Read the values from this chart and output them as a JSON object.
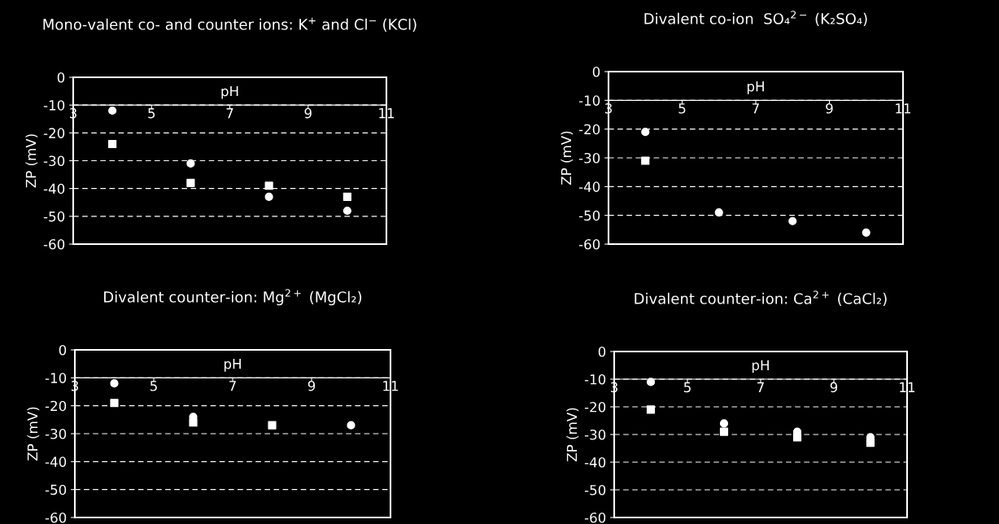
{
  "chart_data": [
    {
      "type": "scatter",
      "title": "Mono-valent co- and counter ions: K$^{+}$ and Cl$^{−}$ (KCl)",
      "xlabel": "pH",
      "ylabel": "ZP (mV)",
      "xlim": [
        3,
        11
      ],
      "xticks": [
        3,
        5,
        7,
        9,
        11
      ],
      "ylim": [
        -60,
        0
      ],
      "yticks": [
        -60,
        -50,
        -40,
        -30,
        -20,
        -10,
        0
      ],
      "grid": "y",
      "x": [
        4,
        6,
        8,
        10
      ],
      "series": [
        {
          "color": "#ffffff",
          "marker": "circle",
          "values": [
            -12,
            -31,
            -43,
            -48
          ]
        },
        {
          "color": "#ffffff",
          "marker": "square",
          "values": [
            -24,
            -38,
            -39,
            -43
          ]
        }
      ]
    },
    {
      "type": "scatter",
      "title": "Divalent co-ion  SO₄$^{2−}$ (K₂SO₄)",
      "xlabel": "pH",
      "ylabel": "ZP (mV)",
      "xlim": [
        3,
        11
      ],
      "xticks": [
        3,
        5,
        7,
        9,
        11
      ],
      "ylim": [
        -60,
        0
      ],
      "yticks": [
        -60,
        -50,
        -40,
        -30,
        -20,
        -10,
        0
      ],
      "grid": "y",
      "x": [
        4,
        6,
        8,
        10
      ],
      "series": [
        {
          "color": "#ffffff",
          "marker": "circle",
          "values": [
            -21,
            -49,
            -52,
            -56
          ]
        },
        {
          "color": "#ffffff",
          "marker": "square",
          "values": [
            -31,
            null,
            null,
            null
          ]
        }
      ]
    },
    {
      "type": "scatter",
      "title": "Divalent counter-ion: Mg$^{2+}$ (MgCl₂)",
      "xlabel": "pH",
      "ylabel": "ZP (mV)",
      "xlim": [
        3,
        11
      ],
      "xticks": [
        3,
        5,
        7,
        9,
        11
      ],
      "ylim": [
        -60,
        0
      ],
      "yticks": [
        -60,
        -50,
        -40,
        -30,
        -20,
        -10,
        0
      ],
      "grid": "y",
      "x": [
        4,
        6,
        8,
        10
      ],
      "series": [
        {
          "color": "#ffffff",
          "marker": "circle",
          "values": [
            -12,
            -24,
            null,
            -27
          ]
        },
        {
          "color": "#ffffff",
          "marker": "square",
          "values": [
            -19,
            -26,
            -27,
            null
          ]
        }
      ]
    },
    {
      "type": "scatter",
      "title": "Divalent counter-ion: Ca$^{2+}$ (CaCl₂)",
      "xlabel": "pH",
      "ylabel": "ZP (mV)",
      "xlim": [
        3,
        11
      ],
      "xticks": [
        3,
        5,
        7,
        9,
        11
      ],
      "ylim": [
        -60,
        0
      ],
      "yticks": [
        -60,
        -50,
        -40,
        -30,
        -20,
        -10,
        0
      ],
      "grid": "y",
      "x": [
        4,
        6,
        8,
        10
      ],
      "series": [
        {
          "color": "#ffffff",
          "marker": "circle",
          "values": [
            -11,
            -26,
            -29,
            -31
          ]
        },
        {
          "color": "#ffffff",
          "marker": "square",
          "values": [
            -21,
            -29,
            -31,
            -33
          ]
        }
      ]
    }
  ]
}
